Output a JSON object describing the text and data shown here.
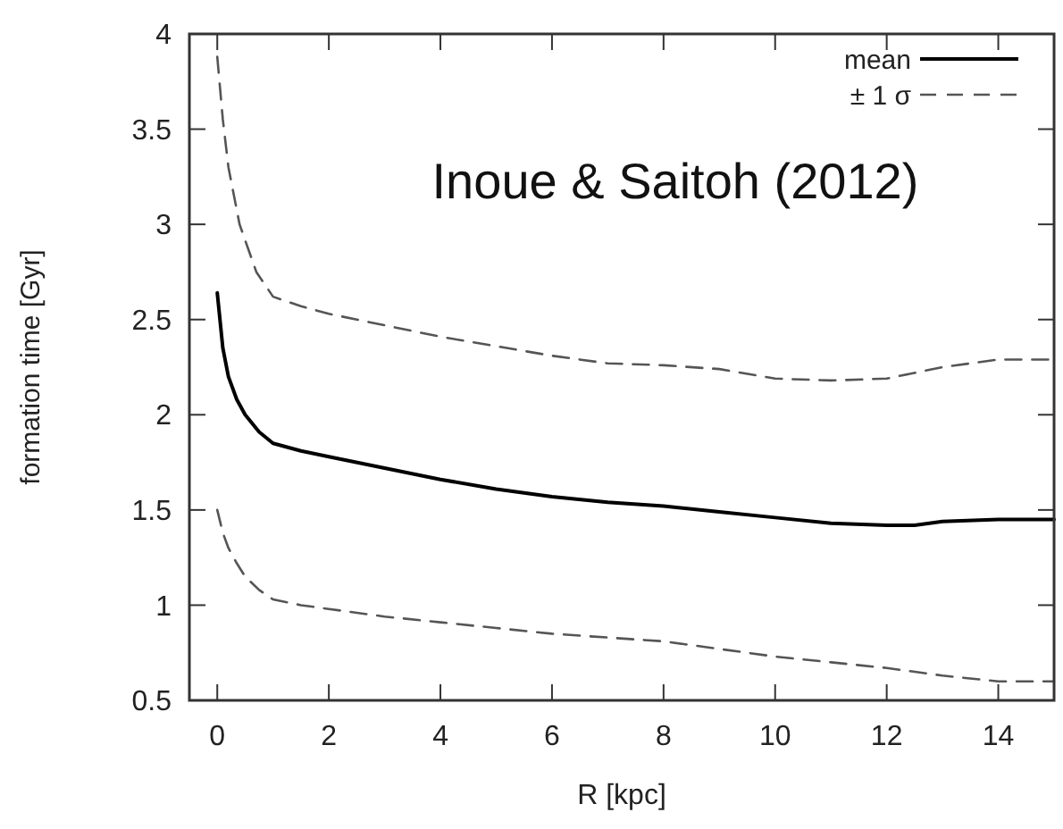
{
  "chart_data": {
    "type": "line",
    "xlabel": "R [kpc]",
    "ylabel": "formation time [Gyr]",
    "annotations": [
      "Inoue & Saitoh (2012)"
    ],
    "xlim": [
      -0.5,
      15
    ],
    "xticks": [
      0,
      2,
      4,
      6,
      8,
      10,
      12,
      14
    ],
    "ylim": [
      0.5,
      4
    ],
    "yticks": [
      0.5,
      1,
      1.5,
      2,
      2.5,
      3,
      3.5,
      4
    ],
    "grid": false,
    "legend": "top right",
    "series": [
      {
        "name": "mean",
        "color": "#000000",
        "line_style": "solid",
        "x": [
          0,
          0.1,
          0.2,
          0.35,
          0.5,
          0.75,
          1,
          1.5,
          2,
          3,
          4,
          5,
          6,
          7,
          8,
          9,
          10,
          11,
          12,
          12.5,
          13,
          14,
          15
        ],
        "values": [
          2.64,
          2.35,
          2.2,
          2.08,
          2.0,
          1.91,
          1.85,
          1.81,
          1.78,
          1.72,
          1.66,
          1.61,
          1.57,
          1.54,
          1.52,
          1.49,
          1.46,
          1.43,
          1.42,
          1.42,
          1.44,
          1.45,
          1.45
        ]
      },
      {
        "name": "± 1 σ",
        "color": "#555555",
        "line_style": "dashed",
        "x": [
          0,
          0.1,
          0.2,
          0.4,
          0.7,
          1,
          1.5,
          2,
          3,
          4,
          5,
          6,
          7,
          8,
          9,
          10,
          11,
          12,
          13,
          14,
          15
        ],
        "values": [
          3.88,
          3.55,
          3.3,
          3.0,
          2.75,
          2.62,
          2.57,
          2.53,
          2.47,
          2.41,
          2.36,
          2.31,
          2.27,
          2.26,
          2.24,
          2.19,
          2.18,
          2.19,
          2.25,
          2.29,
          2.29
        ]
      },
      {
        "color": "#555555",
        "line_style": "dashed",
        "x": [
          0,
          0.1,
          0.2,
          0.35,
          0.5,
          0.75,
          1,
          1.5,
          2,
          3,
          4,
          5,
          6,
          7,
          8,
          9,
          10,
          11,
          12,
          13,
          14,
          15
        ],
        "values": [
          1.5,
          1.38,
          1.3,
          1.22,
          1.15,
          1.08,
          1.03,
          1.0,
          0.98,
          0.94,
          0.91,
          0.88,
          0.85,
          0.83,
          0.81,
          0.77,
          0.73,
          0.7,
          0.67,
          0.63,
          0.6,
          0.6
        ]
      }
    ]
  }
}
